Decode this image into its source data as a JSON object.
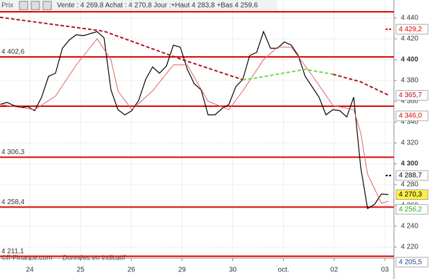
{
  "header": {
    "tab": "Prix",
    "quote": "Vente : 4 269,8 Achat : 4 270,8 Jour :+Haut 4 283,8 +Bas 4 259,6"
  },
  "footer": {
    "source": "©ff-Finance.com",
    "note": "Données en indicatif"
  },
  "chart_data": {
    "type": "line",
    "categories": [
      "24",
      "25",
      "26",
      "29",
      "30",
      "oct.",
      "02",
      "03"
    ],
    "ylim": [
      4209.3,
      4457.3
    ],
    "yticks": [
      {
        "value": 4220,
        "label": "4 220"
      },
      {
        "value": 4240,
        "label": "4 240"
      },
      {
        "value": 4260,
        "label": "4 260"
      },
      {
        "value": 4280,
        "label": "4 280"
      },
      {
        "value": 4300,
        "label": "4 300"
      },
      {
        "value": 4320,
        "label": "4 320"
      },
      {
        "value": 4340,
        "label": "4 340"
      },
      {
        "value": 4360,
        "label": "4 360"
      },
      {
        "value": 4380,
        "label": "4 380"
      },
      {
        "value": 4400,
        "label": "4 400"
      },
      {
        "value": 4420,
        "label": "4 420"
      },
      {
        "value": 4440,
        "label": "4 440"
      }
    ],
    "bold_ticks": [
      4300,
      4400
    ],
    "grid": true,
    "series": [
      {
        "color": "#000000",
        "width": 1.2,
        "dash": false,
        "x": [
          0,
          1,
          2,
          3,
          4,
          5,
          6,
          7,
          8,
          9,
          10,
          11,
          12,
          13,
          14,
          15,
          16,
          17,
          18,
          19,
          20,
          21,
          22,
          23,
          24,
          25,
          26,
          27,
          28,
          29,
          30,
          31,
          32,
          33,
          34,
          35,
          36,
          37,
          38,
          39,
          40,
          41,
          42,
          43,
          44,
          45,
          46,
          47,
          48,
          49,
          50,
          51,
          52,
          53,
          54,
          55,
          56
        ],
        "values": [
          4357,
          4359,
          4356,
          4354,
          4355,
          4351,
          4364,
          4384,
          4387,
          4411,
          4419,
          4424,
          4423,
          4425,
          4427,
          4421,
          4371,
          4352,
          4347,
          4351,
          4361,
          4381,
          4393,
          4387,
          4394,
          4414,
          4412,
          4391,
          4377,
          4371,
          4347,
          4347,
          4353,
          4357,
          4374,
          4381,
          4404,
          4407,
          4427,
          4411,
          4411,
          4417,
          4414,
          4404,
          4384,
          4374,
          4364,
          4347,
          4352,
          4351,
          4345,
          4364,
          4297,
          4257,
          4261,
          4271,
          4270.3
        ]
      },
      {
        "color": "#e06060",
        "width": 1,
        "dash": false,
        "x": [
          0,
          5,
          8,
          11,
          14,
          16,
          17,
          19,
          22,
          25,
          27,
          30,
          33,
          35,
          38,
          40,
          42,
          45,
          48,
          51,
          52,
          53,
          55,
          56
        ],
        "values": [
          4357,
          4352,
          4365,
          4395,
          4420,
          4400,
          4370,
          4352,
          4370,
          4395,
          4395,
          4360,
          4352,
          4370,
          4400,
          4412,
          4412,
          4385,
          4356,
          4352,
          4330,
          4290,
          4262,
          4264
        ]
      },
      {
        "color": "#b01020",
        "width": 2,
        "dash": true,
        "x": [
          0,
          15,
          26,
          35,
          36.5,
          44,
          48,
          52,
          56
        ],
        "values": [
          4440.7,
          4427.3,
          4400.7,
          4380.7,
          null,
          null,
          4386,
          4378.7,
          4366
        ]
      },
      {
        "color": "#66dd44",
        "width": 2,
        "dash": true,
        "x": [
          35,
          36.5,
          44,
          48
        ],
        "values": [
          4380.7,
          4382,
          4390.7,
          4386
        ]
      }
    ],
    "levels": [
      {
        "value": 4446
      },
      {
        "value": 4402.6,
        "label": "4 402,6"
      },
      {
        "value": 4355.3
      },
      {
        "value": 4306.3,
        "label": "4 306,3"
      },
      {
        "value": 4258.4,
        "label": "4 258,4"
      },
      {
        "value": 4211.1,
        "label": "4 211,1"
      }
    ],
    "level_color": "#dd0000",
    "right_labels": [
      {
        "value": 4429.2,
        "label": "4 429,2",
        "color": "#dd0000",
        "bg": "#ffffff"
      },
      {
        "value": 4365.7,
        "label": "4 365,7",
        "color": "#b01020",
        "bg": "#ffffff"
      },
      {
        "value": 4346.0,
        "label": "4 346,0",
        "color": "#dd0000",
        "bg": "#ffffff"
      },
      {
        "value": 4288.7,
        "label": "4 288,7",
        "color": "#000000",
        "bg": "#ffffff"
      },
      {
        "value": 4270.3,
        "label": "4 270,3",
        "color": "#000000",
        "bg": "#ffee44"
      },
      {
        "value": 4256.2,
        "label": "4 256,2",
        "color": "#22aa22",
        "bg": "#ffffff"
      },
      {
        "value": 4205.5,
        "label": "4 205,5",
        "color": "#224488",
        "bg": "#ffffff"
      }
    ]
  }
}
